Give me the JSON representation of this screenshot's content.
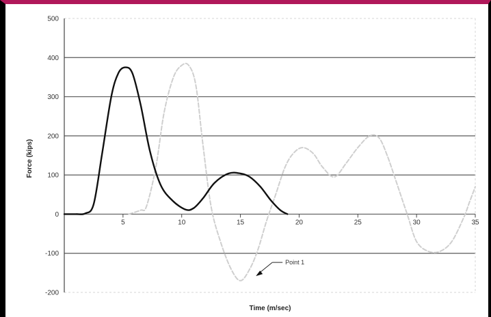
{
  "chart_data": {
    "type": "line",
    "title": "",
    "xlabel": "Time (m/sec)",
    "ylabel": "Force (kips)",
    "xlim": [
      0,
      35
    ],
    "ylim": [
      -200,
      500
    ],
    "x_ticks": [
      5,
      10,
      15,
      20,
      25,
      30,
      35
    ],
    "x_tick_labels": [
      "5",
      "10",
      "15",
      "20",
      "25",
      "30",
      "35"
    ],
    "y_ticks": [
      -200,
      -100,
      0,
      100,
      200,
      300,
      400,
      500
    ],
    "y_tick_labels": [
      "-200",
      "-100",
      "0",
      "100",
      "200",
      "300",
      "400",
      "500"
    ],
    "grid": true,
    "legend": "none",
    "series": [
      {
        "color": "#111111",
        "style": "solid",
        "x": [
          0,
          1,
          1.8,
          2.5,
          3.2,
          4,
          4.6,
          5.2,
          5.8,
          6.5,
          7.3,
          8.2,
          9.2,
          10.3,
          11,
          11.8,
          12.8,
          14,
          15,
          15.8,
          16.7,
          17.6,
          18.4,
          19
        ],
        "y": [
          0,
          0,
          2,
          25,
          150,
          300,
          360,
          375,
          360,
          280,
          160,
          75,
          35,
          12,
          15,
          40,
          80,
          104,
          104,
          95,
          70,
          35,
          10,
          0
        ]
      },
      {
        "color": "#cfcfcf",
        "style": "dashed",
        "x": [
          5.5,
          6.5,
          7,
          7.8,
          8.5,
          9.3,
          10,
          10.6,
          11.2,
          11.8,
          12.5,
          13.3,
          14.2,
          15,
          15.8,
          16.5,
          17.2,
          18,
          18.8,
          19.5,
          20.3,
          21.2,
          22,
          23,
          24,
          25,
          26,
          26.8,
          27.5,
          28.3,
          29.2,
          30,
          31,
          32,
          33,
          34,
          34.5,
          35
        ],
        "y": [
          0,
          10,
          20,
          120,
          260,
          350,
          380,
          380,
          330,
          180,
          20,
          -70,
          -140,
          -170,
          -140,
          -90,
          -20,
          50,
          120,
          155,
          170,
          155,
          120,
          95,
          130,
          170,
          200,
          195,
          150,
          80,
          0,
          -70,
          -95,
          -95,
          -70,
          -10,
          30,
          70
        ]
      }
    ],
    "annotations": [
      {
        "text": "Point 1",
        "x": 16.2,
        "y": -160
      }
    ]
  }
}
